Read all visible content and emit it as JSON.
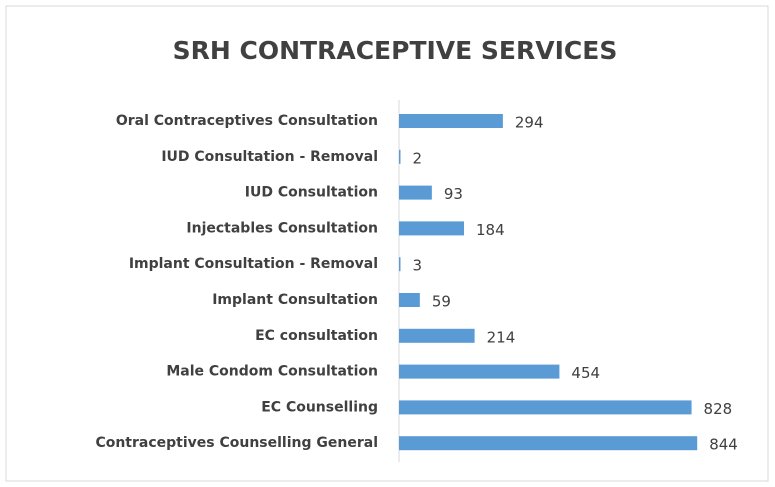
{
  "chart_data": {
    "type": "hbar",
    "title": "SRH CONTRACEPTIVE SERVICES",
    "categories": [
      "Oral Contraceptives Consultation",
      "IUD Consultation  - Removal",
      "IUD Consultation",
      "Injectables Consultation",
      "Implant Consultation - Removal",
      "Implant Consultation",
      "EC consultation",
      "Male Condom Consultation",
      "EC Counselling",
      "Contraceptives Counselling General"
    ],
    "values": [
      294,
      2,
      93,
      184,
      3,
      59,
      214,
      454,
      828,
      844
    ],
    "color": "#5b9bd5",
    "xlim": [
      0,
      900
    ]
  }
}
